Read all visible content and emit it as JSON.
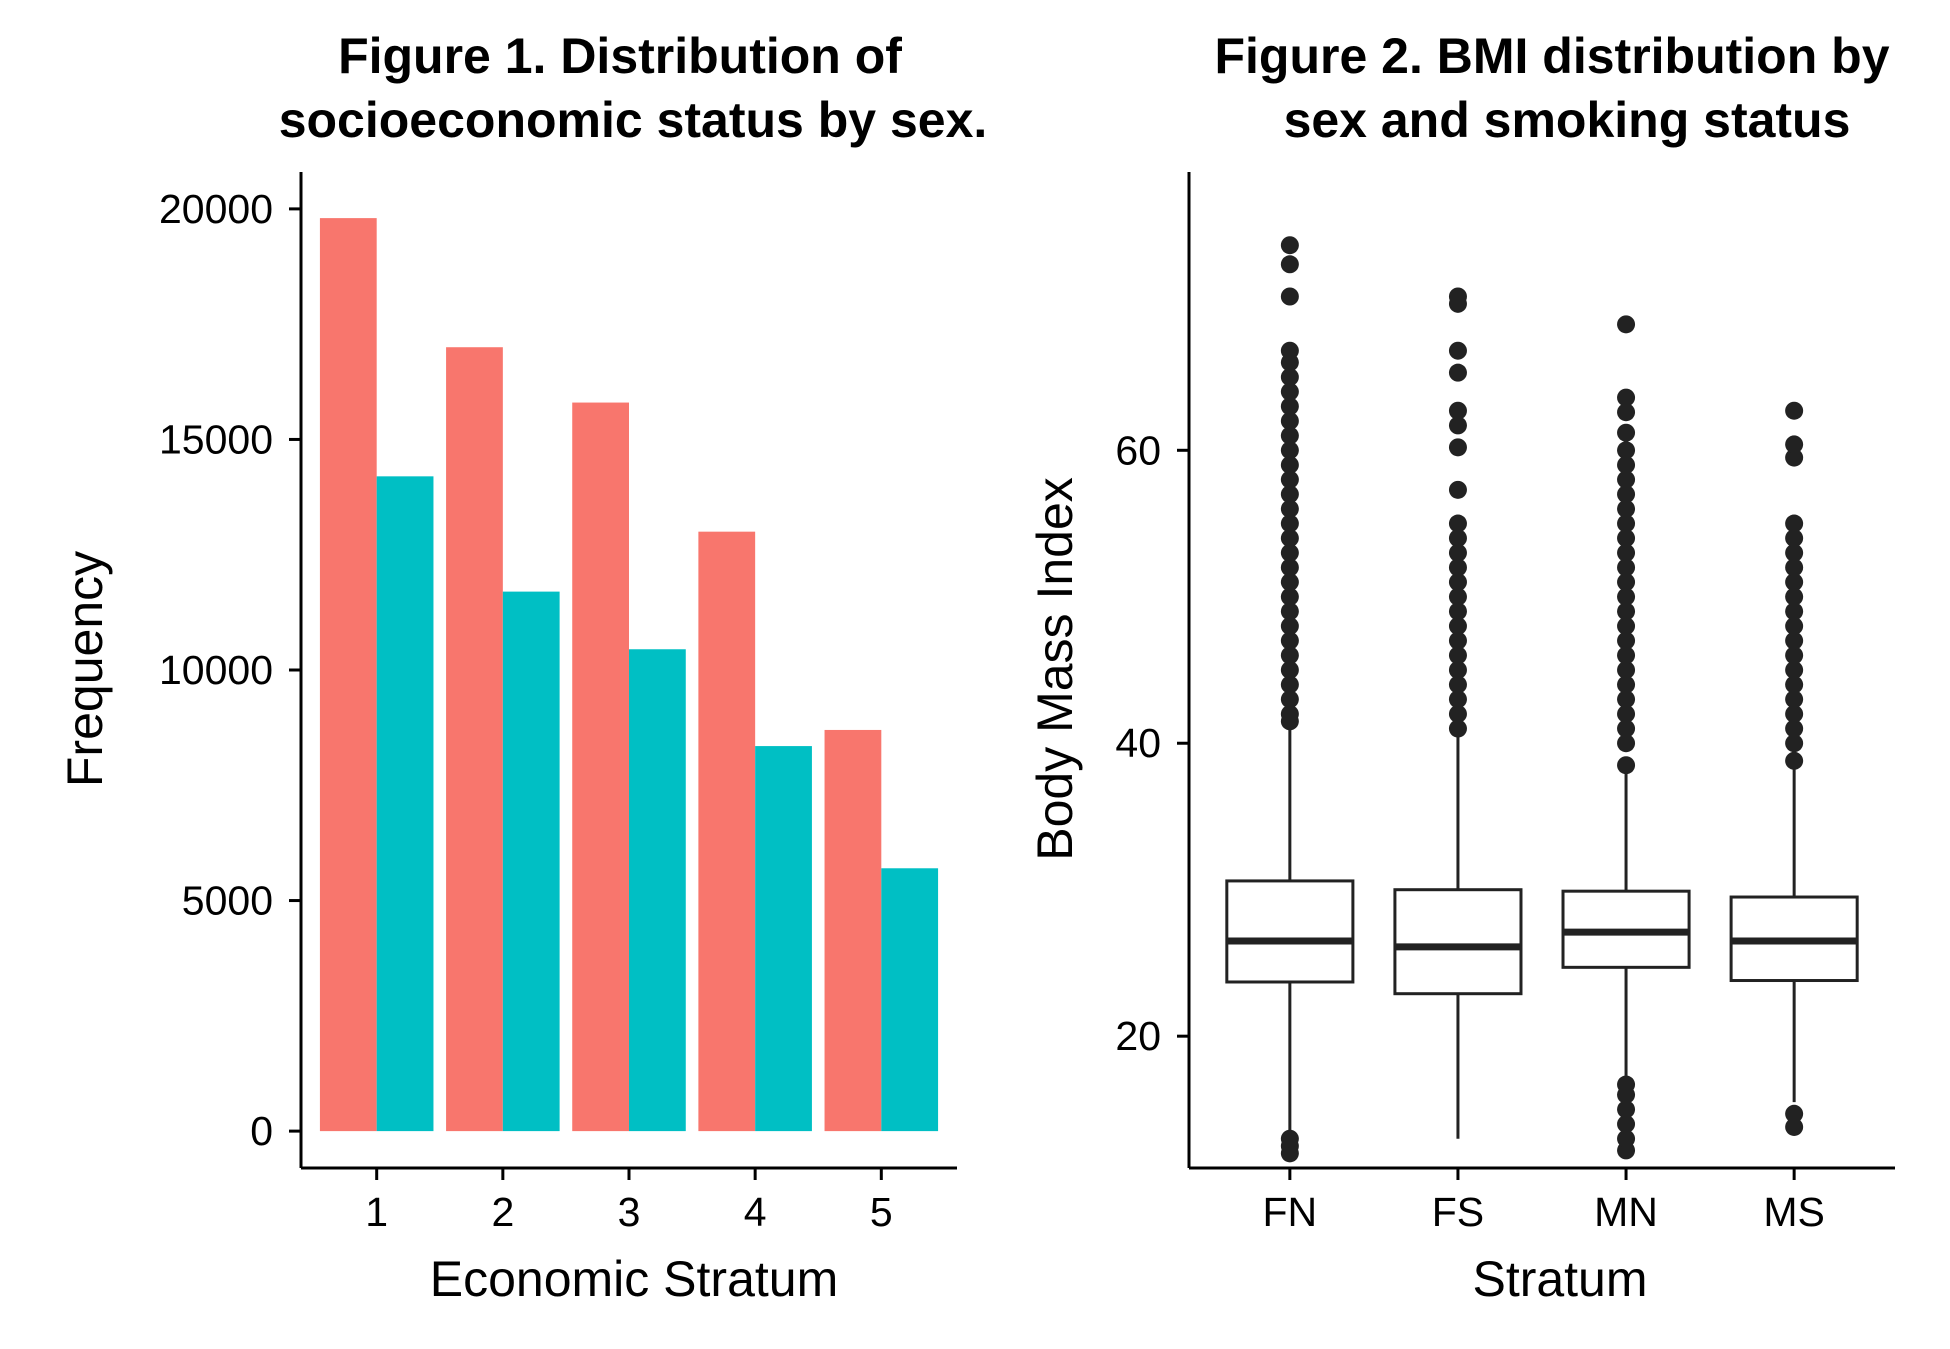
{
  "chart_data": [
    {
      "type": "bar",
      "title_lines": [
        "Figure 1. Distribution of",
        "socioeconomic status by sex."
      ],
      "xlabel": "Economic Stratum",
      "ylabel": "Frequency",
      "categories": [
        "1",
        "2",
        "3",
        "4",
        "5"
      ],
      "series": [
        {
          "color": "#F8766D",
          "values": [
            19800,
            17000,
            15800,
            13000,
            8700
          ]
        },
        {
          "color": "#00BFC4",
          "values": [
            14200,
            11700,
            10450,
            8350,
            5700
          ]
        }
      ],
      "ylim": [
        -800,
        20800
      ],
      "yticks": [
        0,
        5000,
        10000,
        15000,
        20000
      ],
      "ytick_labels": [
        "0",
        "5000",
        "10000",
        "15000",
        "20000"
      ],
      "grid": false,
      "legend": "none"
    },
    {
      "type": "boxplot",
      "title_lines": [
        "Figure 2. BMI distribution by",
        "sex and smoking status"
      ],
      "xlabel": "Stratum",
      "ylabel": "Body Mass Index",
      "categories": [
        "FN",
        "FS",
        "MN",
        "MS"
      ],
      "boxes": [
        {
          "whisker_low": 13.2,
          "q1": 23.7,
          "median": 26.5,
          "q3": 30.6,
          "whisker_high": 41.0,
          "outliers": [
            12.0,
            12.5,
            13.0,
            41.5,
            42,
            43,
            44,
            45,
            46,
            47,
            48,
            49,
            50,
            51,
            52,
            53,
            54,
            55,
            56,
            57,
            58,
            59,
            60,
            61,
            62,
            63,
            64,
            65,
            66,
            66.8,
            70.5,
            72.7,
            74.0
          ]
        },
        {
          "whisker_low": 13.0,
          "q1": 22.9,
          "median": 26.1,
          "q3": 30.0,
          "whisker_high": 40.8,
          "outliers": [
            41,
            42,
            43,
            44,
            45,
            46,
            47,
            48,
            49,
            50,
            51,
            52,
            53,
            54,
            55.0,
            57.3,
            60.2,
            61.7,
            62.7,
            65.3,
            66.8,
            70.0,
            70.5
          ]
        },
        {
          "whisker_low": 17.3,
          "q1": 24.7,
          "median": 27.1,
          "q3": 29.9,
          "whisker_high": 37.9,
          "outliers": [
            12.2,
            13,
            14,
            15,
            16,
            16.7,
            38.5,
            40,
            41,
            42,
            43,
            44,
            45,
            46,
            47,
            48,
            49,
            50,
            51,
            52,
            53,
            54,
            55,
            56,
            57,
            58,
            59,
            60,
            61.2,
            62.6,
            63.6,
            68.6
          ]
        },
        {
          "whisker_low": 15.5,
          "q1": 23.8,
          "median": 26.5,
          "q3": 29.5,
          "whisker_high": 38.3,
          "outliers": [
            13.8,
            14.7,
            38.8,
            40,
            41,
            42,
            43,
            44,
            45,
            46,
            47,
            48,
            49,
            50,
            51,
            52,
            53,
            54,
            55.0,
            59.5,
            60.4,
            62.7
          ]
        }
      ],
      "ylim": [
        11,
        79
      ],
      "yticks": [
        20,
        40,
        60
      ],
      "ytick_labels": [
        "20",
        "40",
        "60"
      ],
      "grid": false,
      "legend": "none"
    }
  ]
}
